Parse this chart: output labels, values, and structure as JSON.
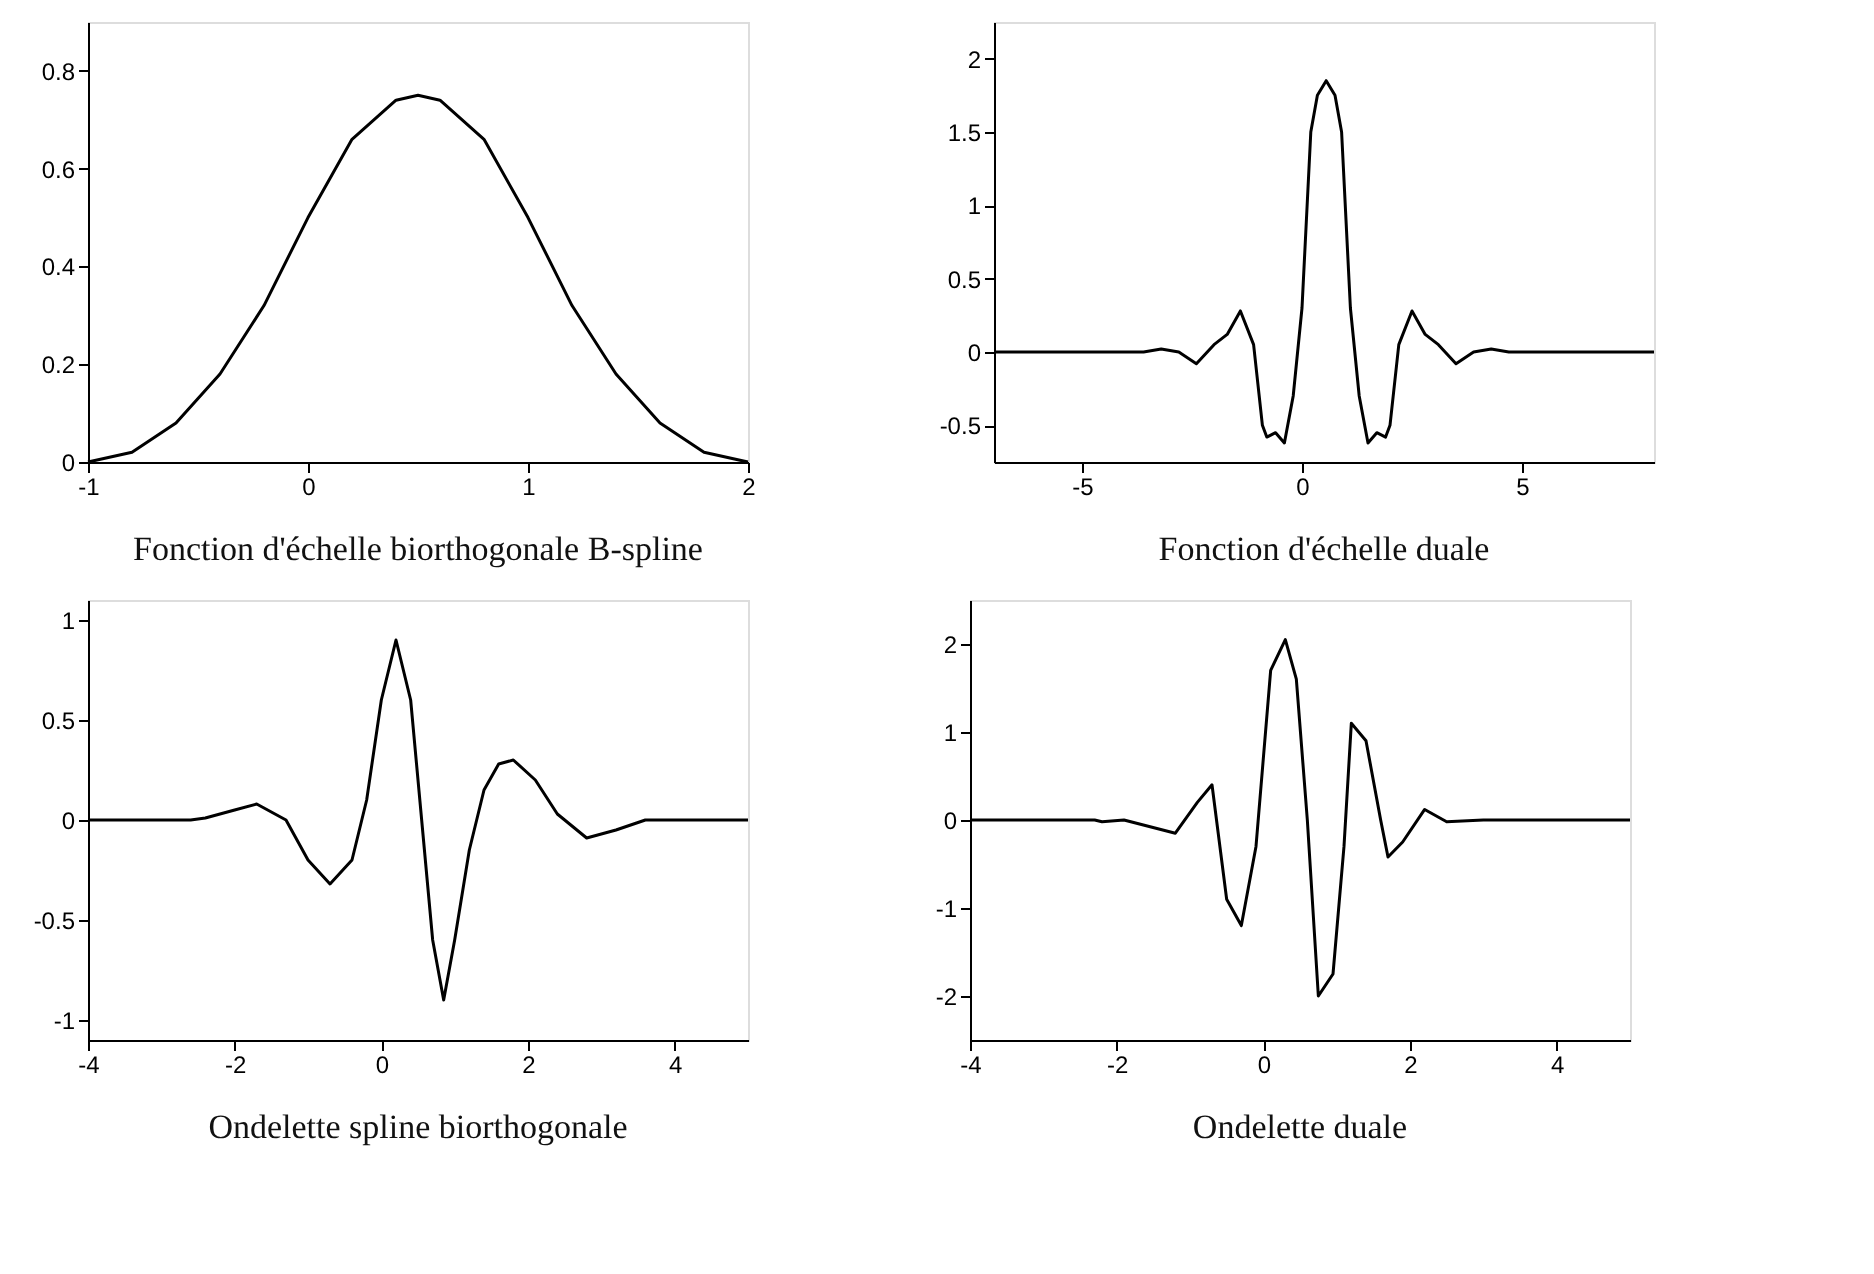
{
  "chart_data": [
    {
      "type": "line",
      "title": "Fonction d'échelle biorthogonale B-spline",
      "xlim": [
        -1,
        2
      ],
      "xticks": [
        -1,
        0,
        1,
        2
      ],
      "ylim": [
        0,
        0.9
      ],
      "yticks": [
        0,
        0.2,
        0.4,
        0.6,
        0.8
      ],
      "grid": false,
      "series": [
        {
          "color": "#000000",
          "x": [
            -1,
            -0.8,
            -0.6,
            -0.4,
            -0.2,
            0,
            0.2,
            0.4,
            0.5,
            0.6,
            0.8,
            1,
            1.2,
            1.4,
            1.6,
            1.8,
            2
          ],
          "values": [
            0,
            0.02,
            0.08,
            0.18,
            0.32,
            0.5,
            0.66,
            0.74,
            0.75,
            0.74,
            0.66,
            0.5,
            0.32,
            0.18,
            0.08,
            0.02,
            0
          ]
        }
      ]
    },
    {
      "type": "line",
      "title": "Fonction d'échelle duale",
      "xlim": [
        -7,
        8
      ],
      "xticks": [
        -5,
        0,
        5
      ],
      "ylim": [
        -0.75,
        2.25
      ],
      "yticks": [
        -0.5,
        0,
        0.5,
        1,
        1.5,
        2
      ],
      "grid": false,
      "series": [
        {
          "color": "#000000",
          "x": [
            -7,
            -3.6,
            -3.2,
            -2.8,
            -2.4,
            -2.0,
            -1.7,
            -1.4,
            -1.1,
            -0.9,
            -0.8,
            -0.6,
            -0.4,
            -0.2,
            0.0,
            0.2,
            0.35,
            0.55,
            0.75,
            0.9,
            1.1,
            1.3,
            1.5,
            1.7,
            1.9,
            2.0,
            2.2,
            2.5,
            2.8,
            3.1,
            3.5,
            3.9,
            4.3,
            4.7,
            8
          ],
          "values": [
            0,
            0,
            0.02,
            0,
            -0.08,
            0.05,
            0.12,
            0.28,
            0.05,
            -0.5,
            -0.58,
            -0.55,
            -0.62,
            -0.3,
            0.3,
            1.5,
            1.75,
            1.85,
            1.75,
            1.5,
            0.3,
            -0.3,
            -0.62,
            -0.55,
            -0.58,
            -0.5,
            0.05,
            0.28,
            0.12,
            0.05,
            -0.08,
            0,
            0.02,
            0,
            0
          ]
        }
      ]
    },
    {
      "type": "line",
      "title": "Ondelette spline biorthogonale",
      "xlim": [
        -4,
        5
      ],
      "xticks": [
        -4,
        -2,
        0,
        2,
        4
      ],
      "ylim": [
        -1.1,
        1.1
      ],
      "yticks": [
        -1,
        -0.5,
        0,
        0.5,
        1
      ],
      "grid": false,
      "series": [
        {
          "color": "#000000",
          "x": [
            -4,
            -2.6,
            -2.4,
            -2.0,
            -1.7,
            -1.3,
            -1.0,
            -0.7,
            -0.4,
            -0.2,
            0.0,
            0.2,
            0.4,
            0.55,
            0.7,
            0.85,
            1.0,
            1.2,
            1.4,
            1.6,
            1.8,
            2.1,
            2.4,
            2.8,
            3.2,
            3.6,
            5
          ],
          "values": [
            0,
            0,
            0.01,
            0.05,
            0.08,
            0,
            -0.2,
            -0.32,
            -0.2,
            0.1,
            0.6,
            0.9,
            0.6,
            0,
            -0.6,
            -0.9,
            -0.6,
            -0.15,
            0.15,
            0.28,
            0.3,
            0.2,
            0.03,
            -0.09,
            -0.05,
            0,
            0
          ]
        }
      ]
    },
    {
      "type": "line",
      "title": "Ondelette duale",
      "xlim": [
        -4,
        5
      ],
      "xticks": [
        -4,
        -2,
        0,
        2,
        4
      ],
      "ylim": [
        -2.5,
        2.5
      ],
      "yticks": [
        -2,
        -1,
        0,
        1,
        2
      ],
      "grid": false,
      "series": [
        {
          "color": "#000000",
          "x": [
            -4,
            -2.3,
            -2.2,
            -1.9,
            -1.2,
            -0.9,
            -0.7,
            -0.5,
            -0.3,
            -0.1,
            0.1,
            0.3,
            0.45,
            0.6,
            0.75,
            0.95,
            1.1,
            1.2,
            1.4,
            1.6,
            1.7,
            1.9,
            2.2,
            2.5,
            3.0,
            5
          ],
          "values": [
            0,
            0,
            -0.02,
            0,
            -0.15,
            0.2,
            0.4,
            -0.9,
            -1.2,
            -0.3,
            1.7,
            2.05,
            1.6,
            0,
            -2.0,
            -1.75,
            -0.3,
            1.1,
            0.9,
            0,
            -0.42,
            -0.25,
            0.12,
            -0.02,
            0,
            0
          ]
        }
      ]
    }
  ]
}
